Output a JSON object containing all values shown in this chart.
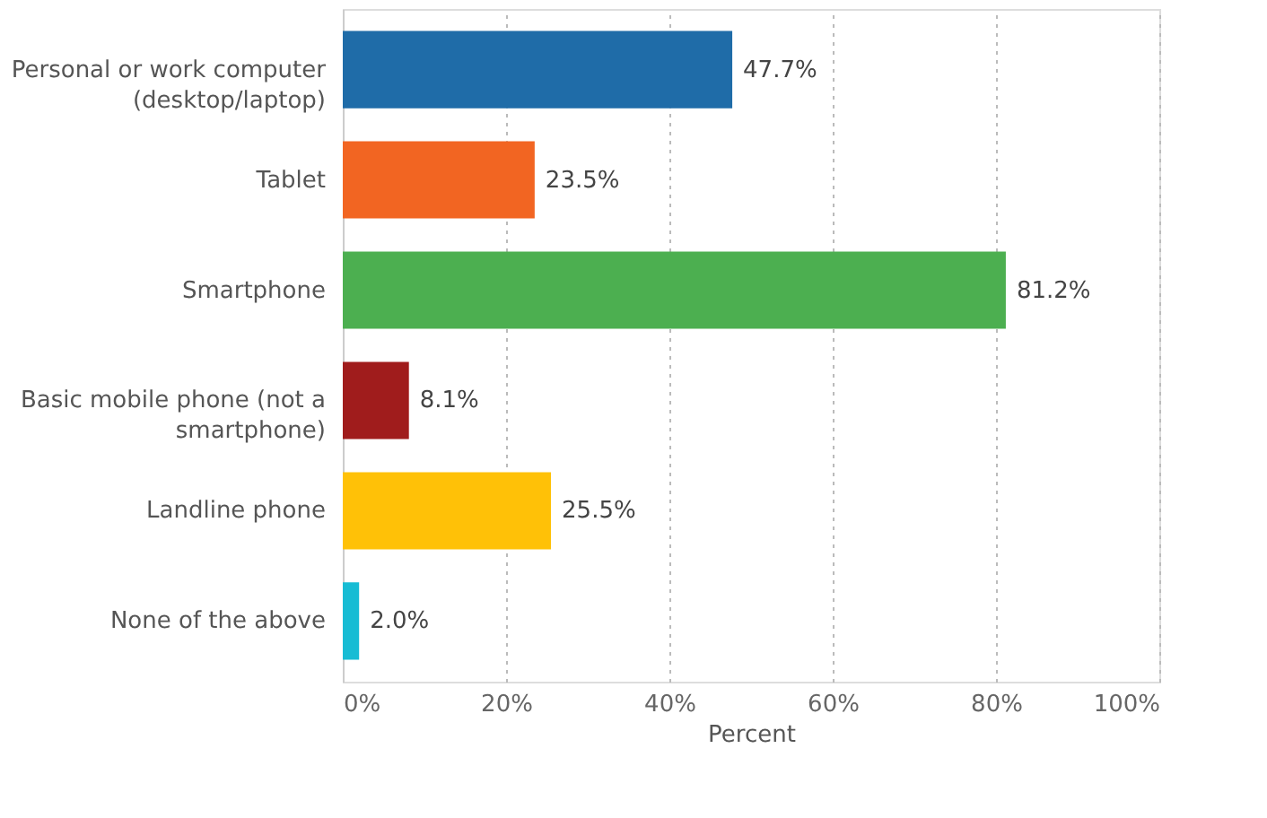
{
  "chart_data": {
    "type": "bar",
    "orientation": "horizontal",
    "xlabel": "Percent",
    "categories": [
      "Personal or work computer\n(desktop/laptop)",
      "Tablet",
      "Smartphone",
      "Basic mobile phone (not a\nsmartphone)",
      "Landline phone",
      "None of the above"
    ],
    "values": [
      47.7,
      23.5,
      81.2,
      8.1,
      25.5,
      2.0
    ],
    "colors": [
      "#1f6ca8",
      "#f26522",
      "#4caf50",
      "#a01c1c",
      "#ffc107",
      "#17bcd4"
    ],
    "value_labels": [
      "47.7%",
      "23.5%",
      "81.2%",
      "8.1%",
      "25.5%",
      "2.0%"
    ],
    "xlim": [
      0,
      100
    ],
    "xticks": [
      {
        "value": 0,
        "label": "0%"
      },
      {
        "value": 20,
        "label": "20%"
      },
      {
        "value": 40,
        "label": "40%"
      },
      {
        "value": 60,
        "label": "60%"
      },
      {
        "value": 80,
        "label": "80%"
      },
      {
        "value": 100,
        "label": "100%"
      }
    ],
    "grid": "x"
  }
}
